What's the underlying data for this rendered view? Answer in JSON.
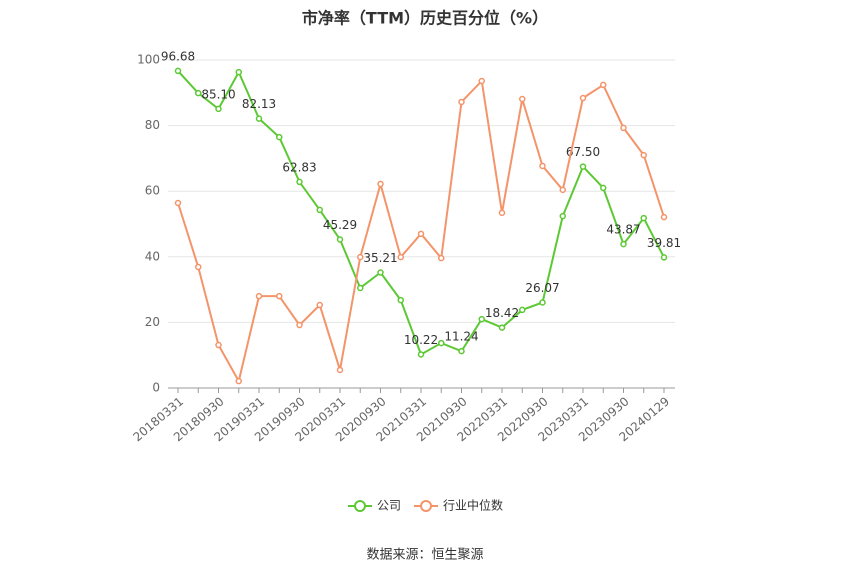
{
  "chart_data": {
    "type": "line",
    "title": "市净率（TTM）历史百分位（%）",
    "categories": [
      "20180331",
      null,
      "20180930",
      null,
      "20190331",
      null,
      "20190930",
      null,
      "20200331",
      null,
      "20200930",
      null,
      "20210331",
      null,
      "20210930",
      null,
      "20220331",
      null,
      "20220930",
      null,
      "20230331",
      null,
      "20230930",
      null,
      "20240129"
    ],
    "series": [
      {
        "name": "公司",
        "color": "#5cc934",
        "values": [
          96.68,
          89.9,
          85.1,
          96.3,
          82.13,
          76.5,
          62.83,
          54.3,
          45.29,
          30.5,
          35.21,
          26.8,
          10.22,
          13.7,
          11.24,
          21.0,
          18.42,
          23.8,
          26.07,
          52.4,
          67.5,
          61.0,
          43.87,
          51.8,
          39.81
        ],
        "value_labels": [
          "96.68",
          null,
          "85.10",
          null,
          "82.13",
          null,
          "62.83",
          null,
          "45.29",
          null,
          "35.21",
          null,
          "10.22",
          null,
          "11.24",
          null,
          "18.42",
          null,
          "26.07",
          null,
          "67.50",
          null,
          "43.87",
          null,
          "39.81"
        ]
      },
      {
        "name": "行业中位数",
        "color": "#f4946a",
        "values": [
          56.4,
          36.9,
          13.1,
          2.1,
          28.0,
          28.0,
          19.2,
          25.3,
          5.5,
          39.9,
          62.2,
          39.9,
          47.0,
          39.6,
          87.2,
          93.6,
          53.4,
          88.1,
          67.7,
          60.4,
          88.4,
          92.4,
          79.3,
          71.0,
          52.1
        ]
      }
    ],
    "ylim": [
      0,
      100
    ],
    "yticks": [
      0,
      20,
      40,
      60,
      80,
      100
    ],
    "grid": true,
    "legend": "bottom",
    "source": "数据来源：恒生聚源"
  }
}
